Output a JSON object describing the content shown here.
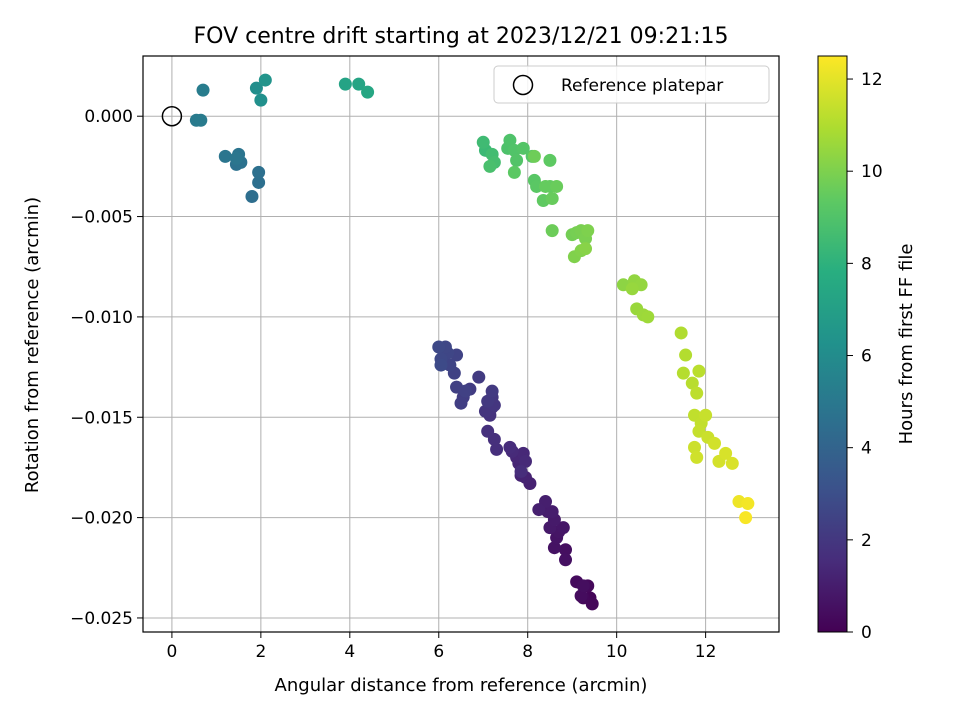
{
  "chart_data": {
    "type": "scatter",
    "title": "FOV centre drift starting at 2023/12/21 09:21:15",
    "xlabel": "Angular distance from reference (arcmin)",
    "ylabel": "Rotation from reference (arcmin)",
    "xlim": [
      -0.65,
      13.65
    ],
    "ylim": [
      -0.0257,
      0.003
    ],
    "x_ticks": [
      0,
      2,
      4,
      6,
      8,
      10,
      12
    ],
    "x_tick_labels": [
      "0",
      "2",
      "4",
      "6",
      "8",
      "10",
      "12"
    ],
    "y_ticks": [
      0.0,
      -0.005,
      -0.01,
      -0.015,
      -0.02,
      -0.025
    ],
    "y_tick_labels": [
      "0.000",
      "−0.005",
      "−0.010",
      "−0.015",
      "−0.020",
      "−0.025"
    ],
    "grid": true,
    "legend": {
      "location": "top-right",
      "entries": [
        "Reference platepar"
      ]
    },
    "reference_point": {
      "label": "Reference platepar",
      "x": 0.0,
      "y": 0.0
    },
    "colorbar": {
      "label": "Hours from first FF file",
      "colormap": "viridis",
      "range": [
        0,
        12.5
      ],
      "ticks": [
        0,
        2,
        4,
        6,
        8,
        10,
        12
      ],
      "tick_labels": [
        "0",
        "2",
        "4",
        "6",
        "8",
        "10",
        "12"
      ]
    },
    "series": [
      {
        "name": "FOV centre drift",
        "x": [
          9.4,
          9.45,
          9.25,
          9.35,
          9.1,
          9.2,
          9.25,
          8.85,
          8.85,
          8.6,
          8.65,
          8.7,
          8.8,
          8.5,
          8.6,
          8.45,
          8.55,
          8.4,
          8.25,
          8.05,
          7.95,
          7.85,
          7.8,
          7.75,
          7.9,
          7.95,
          7.65,
          7.6,
          7.85,
          7.3,
          7.25,
          7.1,
          7.15,
          7.2,
          7.05,
          7.25,
          7.2,
          7.1,
          7.2,
          6.9,
          6.7,
          6.55,
          6.5,
          6.4,
          6.6,
          6.35,
          6.4,
          6.25,
          6.2,
          6.15,
          6.05,
          6.0,
          6.05,
          1.8,
          1.95,
          1.95,
          1.45,
          1.55,
          1.5,
          1.2,
          1.45,
          0.55,
          0.65,
          0.7,
          1.9,
          2.0,
          2.1,
          3.9,
          4.2,
          4.4,
          7.05,
          7.0,
          7.2,
          7.25,
          7.15,
          7.55,
          7.6,
          7.7,
          7.75,
          7.9,
          8.1,
          8.15,
          8.2,
          7.7,
          8.5,
          8.35,
          8.5,
          8.4,
          8.55,
          8.65,
          8.55,
          8.15,
          9.0,
          9.1,
          9.2,
          9.3,
          9.35,
          9.05,
          9.2,
          9.3,
          10.15,
          10.4,
          10.55,
          10.35,
          10.45,
          10.6,
          10.7,
          11.45,
          11.55,
          11.5,
          11.7,
          11.85,
          11.8,
          11.75,
          11.9,
          11.85,
          12.0,
          12.05,
          11.75,
          11.8,
          12.2,
          12.3,
          12.45,
          12.6,
          12.75,
          12.95,
          12.9
        ],
        "y": [
          -0.024,
          -0.0243,
          -0.024,
          -0.0234,
          -0.0232,
          -0.0239,
          -0.0234,
          -0.0216,
          -0.0221,
          -0.0215,
          -0.021,
          -0.0207,
          -0.0205,
          -0.0205,
          -0.0201,
          -0.0197,
          -0.0197,
          -0.0192,
          -0.0196,
          -0.0183,
          -0.018,
          -0.0179,
          -0.0173,
          -0.017,
          -0.0168,
          -0.0172,
          -0.0167,
          -0.0165,
          -0.0177,
          -0.0166,
          -0.0161,
          -0.0157,
          -0.0149,
          -0.0145,
          -0.0147,
          -0.0144,
          -0.014,
          -0.0142,
          -0.0137,
          -0.013,
          -0.0136,
          -0.014,
          -0.0143,
          -0.0135,
          -0.0137,
          -0.0128,
          -0.0119,
          -0.0124,
          -0.0118,
          -0.0115,
          -0.0121,
          -0.0115,
          -0.0124,
          -0.004,
          -0.0033,
          -0.0028,
          -0.0024,
          -0.0023,
          -0.0019,
          -0.002,
          -0.0021,
          -0.0002,
          -0.0002,
          0.0013,
          0.0014,
          0.0008,
          0.0018,
          0.0016,
          0.0016,
          0.0012,
          -0.0017,
          -0.0013,
          -0.0019,
          -0.0023,
          -0.0025,
          -0.0016,
          -0.0012,
          -0.0017,
          -0.0022,
          -0.0016,
          -0.002,
          -0.0032,
          -0.0035,
          -0.0028,
          -0.0022,
          -0.0042,
          -0.0035,
          -0.0035,
          -0.0041,
          -0.0035,
          -0.0057,
          -0.002,
          -0.0059,
          -0.0058,
          -0.0057,
          -0.0061,
          -0.0057,
          -0.007,
          -0.0067,
          -0.0066,
          -0.0084,
          -0.0082,
          -0.0084,
          -0.0086,
          -0.0096,
          -0.0099,
          -0.01,
          -0.0108,
          -0.0119,
          -0.0128,
          -0.0133,
          -0.0127,
          -0.0138,
          -0.0149,
          -0.0153,
          -0.0157,
          -0.0149,
          -0.016,
          -0.0165,
          -0.017,
          -0.0163,
          -0.0172,
          -0.0168,
          -0.0173,
          -0.0192,
          -0.0193,
          -0.02
        ],
        "hours": [
          0.15,
          0.2,
          0.25,
          0.3,
          0.35,
          0.4,
          0.45,
          0.5,
          0.55,
          0.6,
          0.65,
          0.7,
          0.75,
          0.85,
          0.9,
          0.95,
          1.0,
          1.05,
          1.1,
          1.15,
          1.2,
          1.25,
          1.3,
          1.35,
          1.4,
          1.45,
          1.5,
          1.55,
          1.6,
          1.65,
          1.7,
          1.75,
          1.8,
          1.85,
          1.9,
          1.95,
          2.0,
          2.05,
          2.1,
          2.15,
          2.2,
          2.25,
          2.3,
          2.35,
          2.4,
          2.45,
          2.5,
          2.55,
          2.6,
          2.65,
          2.7,
          2.75,
          2.8,
          4.5,
          4.55,
          4.6,
          4.65,
          4.7,
          4.8,
          4.85,
          4.9,
          5.1,
          5.15,
          5.2,
          6.1,
          6.2,
          6.4,
          7.2,
          7.3,
          7.4,
          8.4,
          8.5,
          8.6,
          8.7,
          8.8,
          8.9,
          8.95,
          9.0,
          9.05,
          9.1,
          9.15,
          9.2,
          9.25,
          9.3,
          9.35,
          9.4,
          9.45,
          9.5,
          9.55,
          9.6,
          9.65,
          9.7,
          9.8,
          9.85,
          9.9,
          9.95,
          10.0,
          10.05,
          10.1,
          10.2,
          10.3,
          10.4,
          10.45,
          10.5,
          10.55,
          10.6,
          10.65,
          11.0,
          11.05,
          11.1,
          11.15,
          11.2,
          11.25,
          11.3,
          11.35,
          11.4,
          11.45,
          11.5,
          11.55,
          11.6,
          11.65,
          11.7,
          11.75,
          11.8,
          12.2,
          12.3,
          12.4
        ]
      }
    ]
  }
}
